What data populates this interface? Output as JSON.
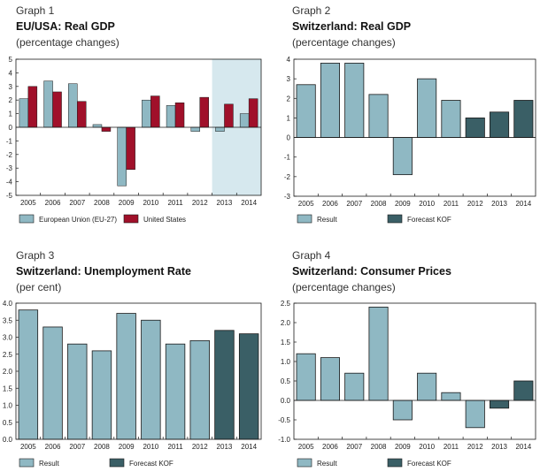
{
  "colors": {
    "eu": "#8fb8c3",
    "us": "#a0102a",
    "result": "#8fb8c3",
    "forecast": "#3a5f66",
    "shade": "#d6e8ee",
    "edge": "#1a1a1a"
  },
  "chart_data": [
    {
      "type": "bar",
      "label": "Graph 1",
      "title": "EU/USA: Real GDP",
      "subtitle": "(percentage changes)",
      "categories": [
        "2005",
        "2006",
        "2007",
        "2008",
        "2009",
        "2010",
        "2011",
        "2012",
        "2013",
        "2014"
      ],
      "ylim": [
        -5,
        5
      ],
      "yticks": [
        "5",
        "4",
        "3",
        "2",
        "1",
        "0",
        "-1",
        "-2",
        "-3",
        "-4",
        "-5"
      ],
      "shaded_from_index": 8,
      "series": [
        {
          "name": "European Union (EU-27)",
          "color_key": "eu",
          "values": [
            2.1,
            3.4,
            3.2,
            0.2,
            -4.3,
            2.0,
            1.6,
            -0.3,
            -0.3,
            1.0
          ]
        },
        {
          "name": "United States",
          "color_key": "us",
          "values": [
            3.0,
            2.6,
            1.9,
            -0.3,
            -3.1,
            2.3,
            1.8,
            2.2,
            1.7,
            2.1
          ]
        }
      ]
    },
    {
      "type": "bar",
      "label": "Graph 2",
      "title": "Switzerland: Real GDP",
      "subtitle": "(percentage changes)",
      "categories": [
        "2005",
        "2006",
        "2007",
        "2008",
        "2009",
        "2010",
        "2011",
        "2012",
        "2013",
        "2014"
      ],
      "ylim": [
        -3,
        4
      ],
      "yticks": [
        "4",
        "3",
        "2",
        "1",
        "0",
        "-1",
        "-2",
        "-3"
      ],
      "values": [
        2.7,
        3.8,
        3.8,
        2.2,
        -1.9,
        3.0,
        1.9,
        1.0,
        1.3,
        1.9
      ],
      "forecast_from_index": 7,
      "legend": [
        "Result",
        "Forecast KOF"
      ]
    },
    {
      "type": "bar",
      "label": "Graph 3",
      "title": "Switzerland: Unemployment Rate",
      "subtitle": "(per cent)",
      "categories": [
        "2005",
        "2006",
        "2007",
        "2008",
        "2009",
        "2010",
        "2011",
        "2012",
        "2013",
        "2014"
      ],
      "ylim": [
        0,
        4
      ],
      "yticks": [
        "4.0",
        "3.5",
        "3.0",
        "2.5",
        "2.0",
        "1.5",
        "1.0",
        "0.5",
        "0.0"
      ],
      "values": [
        3.8,
        3.3,
        2.8,
        2.6,
        3.7,
        3.5,
        2.8,
        2.9,
        3.2,
        3.1
      ],
      "forecast_from_index": 8,
      "legend": [
        "Result",
        "Forecast KOF"
      ]
    },
    {
      "type": "bar",
      "label": "Graph 4",
      "title": "Switzerland: Consumer Prices",
      "subtitle": "(percentage changes)",
      "categories": [
        "2005",
        "2006",
        "2007",
        "2008",
        "2009",
        "2010",
        "2011",
        "2012",
        "2013",
        "2014"
      ],
      "ylim": [
        -1.0,
        2.5
      ],
      "yticks": [
        "2.5",
        "2.0",
        "1.5",
        "1.0",
        "0.5",
        "0.0",
        "-0.5",
        "-1.0"
      ],
      "values": [
        1.2,
        1.1,
        0.7,
        2.4,
        -0.5,
        0.7,
        0.2,
        -0.7,
        -0.2,
        0.5
      ],
      "forecast_from_index": 8,
      "legend": [
        "Result",
        "Forecast KOF"
      ]
    }
  ]
}
